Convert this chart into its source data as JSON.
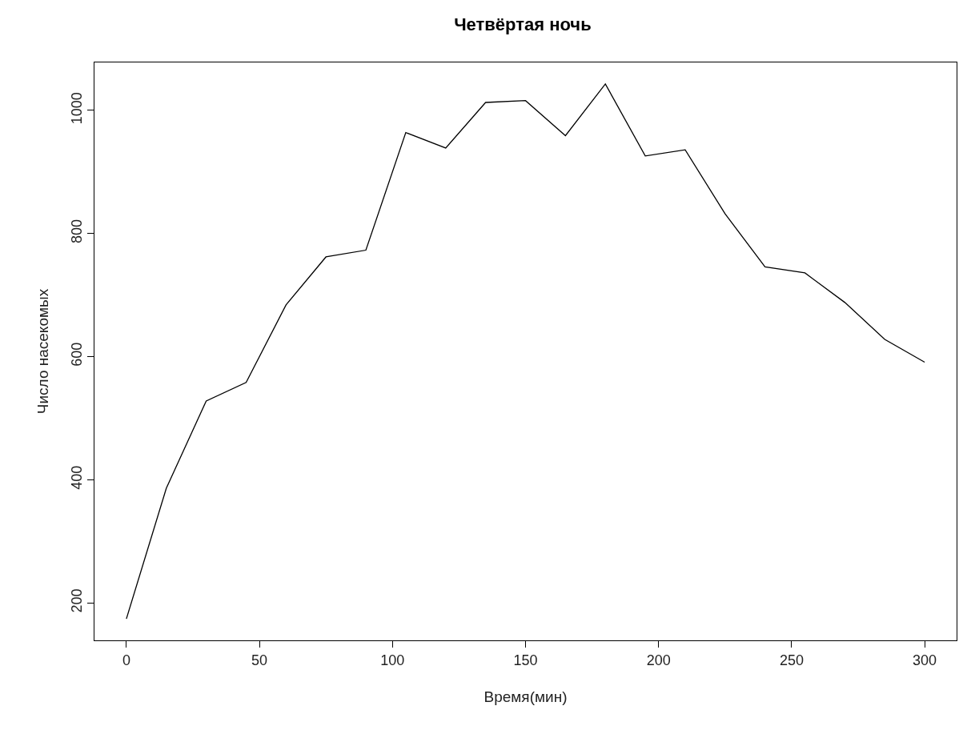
{
  "chart_data": {
    "type": "line",
    "title": "Четвёртая ночь",
    "xlabel": "Время(мин)",
    "ylabel": "Число насекомых",
    "x": [
      0,
      15,
      30,
      45,
      60,
      75,
      90,
      105,
      120,
      135,
      150,
      165,
      180,
      195,
      210,
      225,
      240,
      255,
      270,
      285,
      300
    ],
    "series": [
      {
        "color": "#000000",
        "values": [
          174,
          386,
          528,
          558,
          684,
          762,
          773,
          964,
          939,
          1013,
          1016,
          959,
          1043,
          926,
          936,
          832,
          746,
          736,
          688,
          628,
          591
        ]
      }
    ],
    "xlim": [
      -12,
      312
    ],
    "ylim": [
      139,
      1078
    ],
    "xticks": [
      0,
      50,
      100,
      150,
      200,
      250,
      300
    ],
    "yticks": [
      200,
      400,
      600,
      800,
      1000
    ],
    "marker": "none",
    "line_style": "solid"
  }
}
